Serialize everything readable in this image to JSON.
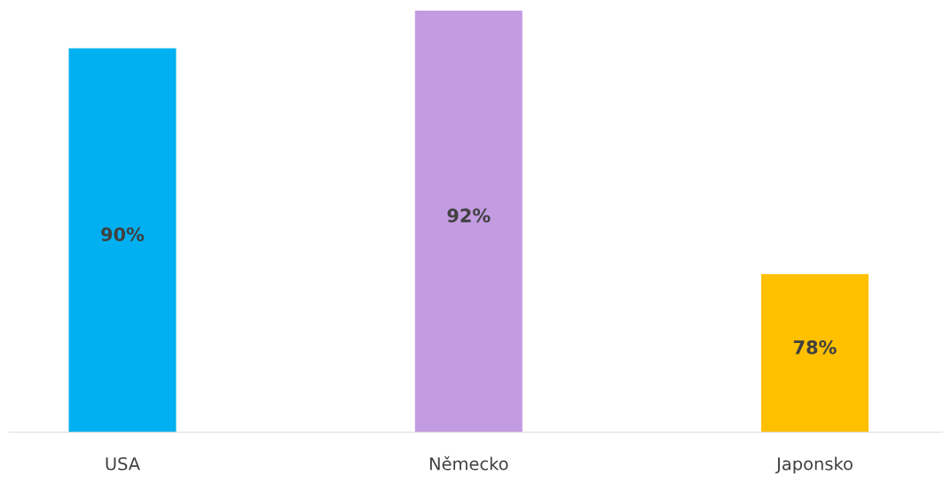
{
  "chart_data": {
    "type": "bar",
    "categories": [
      "USA",
      "Německo",
      "Japonsko"
    ],
    "values": [
      90,
      92,
      78
    ],
    "colors": [
      "#00b0f0",
      "#c39be1",
      "#ffc000"
    ],
    "value_labels": [
      "90%",
      "92%",
      "78%"
    ],
    "tick_labels": "x"
  }
}
